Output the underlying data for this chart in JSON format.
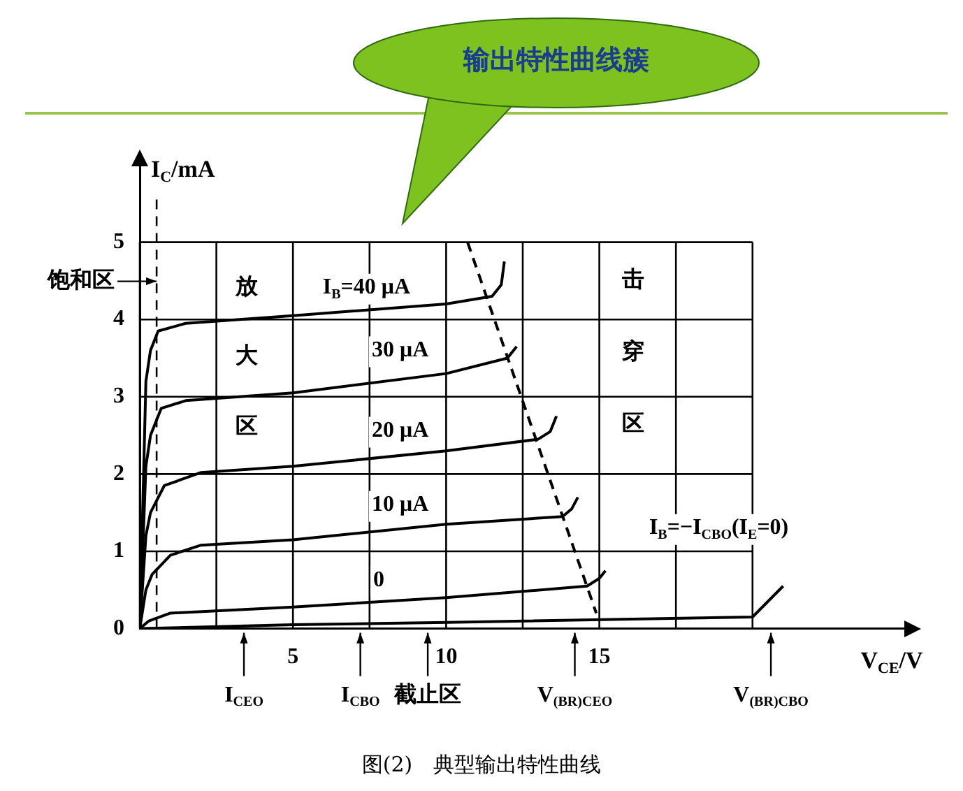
{
  "chart_data": {
    "type": "line",
    "title": "输出特性曲线簇",
    "xlabel": "V$_{CE}$/V",
    "ylabel": "I$_{C}$/mA",
    "xlim": [
      0,
      25
    ],
    "ylim": [
      0,
      6
    ],
    "xticks": [
      {
        "value": 0,
        "label": null
      },
      {
        "value": 2.5,
        "label": null
      },
      5,
      {
        "value": 7.5,
        "label": null
      },
      10,
      {
        "value": 12.5,
        "label": null
      },
      15,
      {
        "value": 17.5,
        "label": null
      },
      {
        "value": 20,
        "label": null
      }
    ],
    "yticks": [
      0,
      1,
      2,
      3,
      4,
      5
    ],
    "grid": true,
    "legend": false,
    "marker": "none",
    "series": [
      {
        "color": "#000000",
        "x": [
          0,
          0.2,
          0.35,
          0.6,
          1.5,
          5,
          10,
          11.5,
          11.8,
          11.9
        ],
        "values": [
          0,
          3.2,
          3.6,
          3.85,
          3.95,
          4.05,
          4.2,
          4.3,
          4.45,
          4.75
        ]
      },
      {
        "color": "#000000",
        "x": [
          0,
          0.2,
          0.35,
          0.7,
          1.5,
          5,
          10,
          12,
          12.3
        ],
        "values": [
          0,
          2.1,
          2.5,
          2.85,
          2.95,
          3.05,
          3.3,
          3.5,
          3.65
        ]
      },
      {
        "color": "#000000",
        "x": [
          0,
          0.2,
          0.35,
          0.8,
          2,
          5,
          10,
          13,
          13.4,
          13.6
        ],
        "values": [
          0,
          1.2,
          1.5,
          1.85,
          2.02,
          2.1,
          2.3,
          2.45,
          2.55,
          2.75
        ]
      },
      {
        "color": "#000000",
        "x": [
          0,
          0.2,
          0.4,
          1,
          2,
          5,
          10,
          13.8,
          14.1,
          14.3
        ],
        "values": [
          0,
          0.5,
          0.7,
          0.95,
          1.08,
          1.15,
          1.35,
          1.45,
          1.55,
          1.7
        ]
      },
      {
        "color": "#000000",
        "x": [
          0,
          0.3,
          1,
          5,
          10,
          14.6,
          15,
          15.2
        ],
        "values": [
          0,
          0.1,
          0.2,
          0.28,
          0.4,
          0.55,
          0.65,
          0.75
        ]
      },
      {
        "color": "#000000",
        "x": [
          0,
          5,
          10,
          20,
          21
        ],
        "values": [
          0,
          0.05,
          0.08,
          0.15,
          0.55
        ]
      },
      {
        "color": "#000000",
        "line_style": "dashed",
        "x": [
          10.7,
          14.9
        ],
        "values": [
          5,
          0.2
        ]
      }
    ],
    "ref_lines": [
      {
        "axis": "x",
        "value": 0.55,
        "label": "饱和区",
        "line_style": "dashed",
        "color": "#000000"
      }
    ],
    "annotations": [
      "I$_{B}$=40 μA",
      "30 μA",
      "20 μA",
      "10 μA",
      "0",
      "I$_{B}$=−I$_{CBO}$(I$_{E}$=0)",
      "放",
      "大",
      "区",
      "击",
      "穿",
      "区",
      "I$_{CEO}$",
      "I$_{CBO}$",
      "截止区",
      "V$_{(BR)CEO}$",
      "V$_{(BR)CBO}$",
      "图(2)　典型输出特性曲线"
    ]
  }
}
